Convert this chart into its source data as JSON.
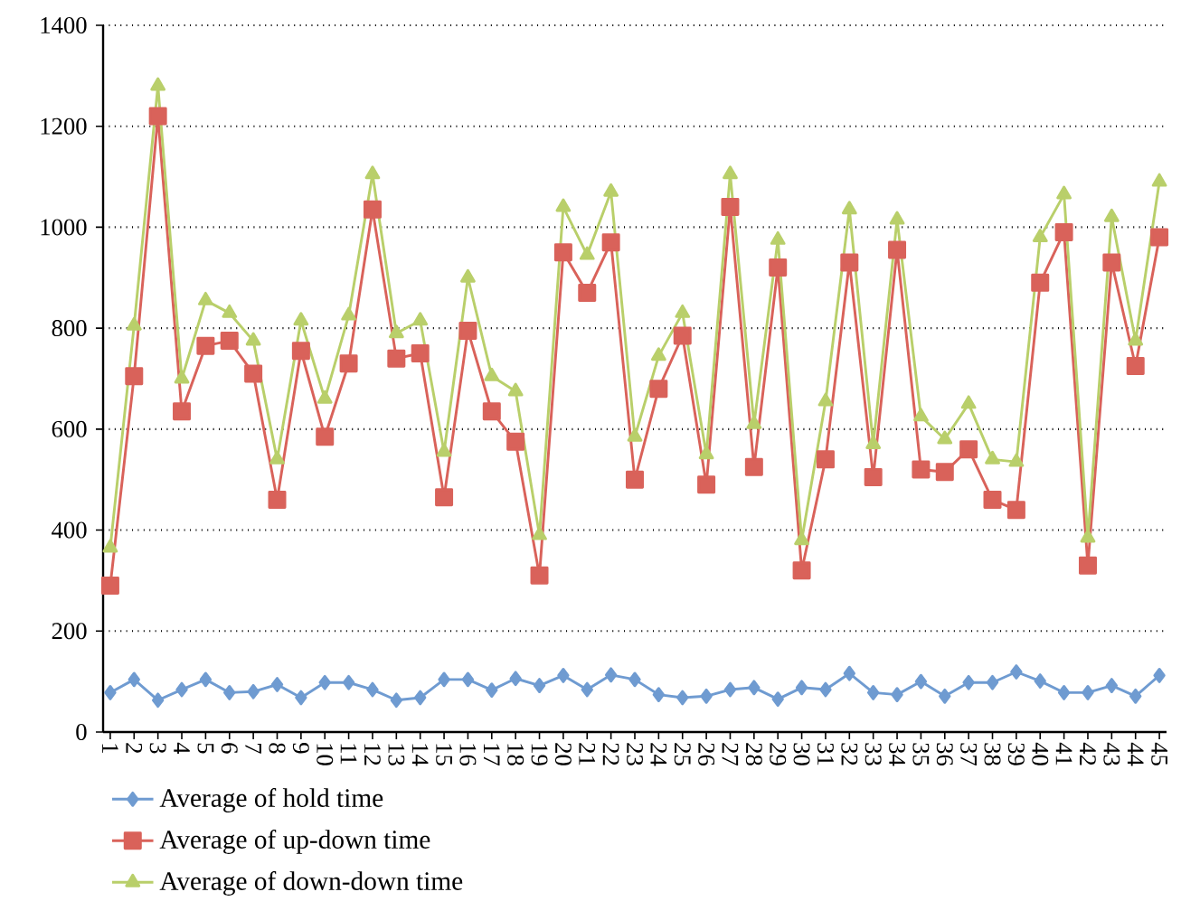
{
  "chart_data": {
    "type": "line",
    "categories": [
      "1",
      "2",
      "3",
      "4",
      "5",
      "6",
      "7",
      "8",
      "9",
      "10",
      "11",
      "12",
      "13",
      "14",
      "15",
      "16",
      "17",
      "18",
      "19",
      "20",
      "21",
      "22",
      "23",
      "24",
      "25",
      "26",
      "27",
      "28",
      "29",
      "30",
      "31",
      "32",
      "33",
      "34",
      "35",
      "36",
      "37",
      "38",
      "39",
      "40",
      "41",
      "42",
      "43",
      "44",
      "45"
    ],
    "series": [
      {
        "name": "Average of hold time",
        "color": "#6f9bd1",
        "marker": "diamond",
        "values": [
          78,
          104,
          63,
          84,
          104,
          78,
          80,
          94,
          68,
          98,
          98,
          84,
          63,
          68,
          104,
          104,
          83,
          106,
          92,
          112,
          84,
          113,
          104,
          74,
          68,
          71,
          84,
          88,
          65,
          88,
          84,
          116,
          78,
          74,
          100,
          71,
          98,
          98,
          119,
          101,
          78,
          78,
          92,
          71,
          112
        ]
      },
      {
        "name": "Average of up-down time",
        "color": "#d9625a",
        "marker": "square",
        "values": [
          290,
          705,
          1220,
          635,
          765,
          775,
          710,
          460,
          755,
          585,
          730,
          1035,
          740,
          750,
          465,
          795,
          635,
          575,
          310,
          950,
          870,
          970,
          500,
          680,
          785,
          490,
          1040,
          525,
          920,
          320,
          540,
          930,
          505,
          955,
          520,
          515,
          560,
          460,
          440,
          890,
          990,
          330,
          930,
          725,
          980
        ]
      },
      {
        "name": "Average of down-down time",
        "color": "#b9cf6a",
        "marker": "triangle",
        "values": [
          365,
          805,
          1280,
          700,
          855,
          830,
          775,
          540,
          815,
          660,
          825,
          1105,
          790,
          815,
          555,
          900,
          705,
          675,
          390,
          1040,
          945,
          1070,
          585,
          745,
          830,
          550,
          1105,
          610,
          975,
          380,
          655,
          1035,
          570,
          1015,
          625,
          580,
          650,
          540,
          535,
          980,
          1065,
          385,
          1020,
          775,
          1090
        ]
      }
    ],
    "ylim": [
      0,
      1400
    ],
    "yticks": [
      0,
      200,
      400,
      600,
      800,
      1000,
      1200,
      1400
    ],
    "grid": "y",
    "legend": "bottom left",
    "line_style": "solid"
  }
}
